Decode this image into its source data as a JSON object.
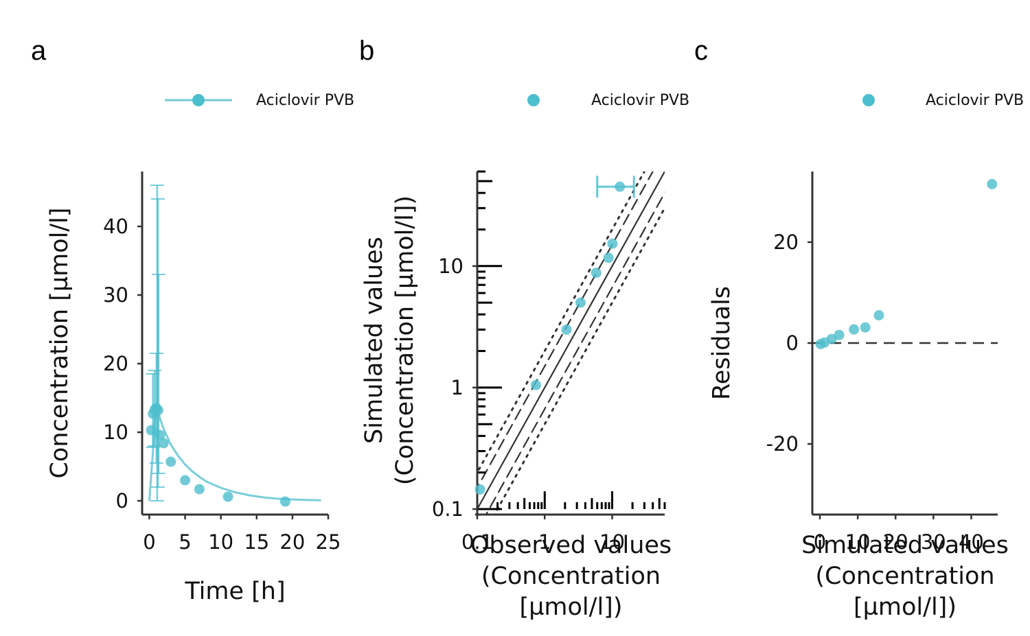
{
  "colors": {
    "series": "#4dbecd",
    "axis": "#333333",
    "ref": "#333333"
  },
  "chart_data": [
    {
      "panel": "a",
      "type": "line",
      "legend": [
        {
          "name": "Aciclovir PVB",
          "marker": "line-point"
        }
      ],
      "xlabel": "Time [h]",
      "ylabel": "Concentration [µmol/l]",
      "xlim": [
        -1,
        25
      ],
      "ylim": [
        -2,
        48
      ],
      "xticks": [
        0,
        5,
        10,
        15,
        20,
        25
      ],
      "yticks": [
        0,
        10,
        20,
        30,
        40
      ],
      "series": [
        {
          "name": "Aciclovir PVB",
          "observed": [
            {
              "x": 0.25,
              "y": 10.3
            },
            {
              "x": 0.5,
              "y": 12.7
            },
            {
              "x": 0.75,
              "y": 13.3
            },
            {
              "x": 1.0,
              "y": 13.5
            },
            {
              "x": 1.25,
              "y": 13.2
            },
            {
              "x": 1.5,
              "y": 9.6
            },
            {
              "x": 2.0,
              "y": 8.4
            },
            {
              "x": 3.0,
              "y": 5.7
            },
            {
              "x": 5.0,
              "y": 3.0
            },
            {
              "x": 7.0,
              "y": 1.7
            },
            {
              "x": 11.0,
              "y": 0.6
            },
            {
              "x": 19.0,
              "y": -0.1
            }
          ],
          "error_bars": [
            {
              "x": 0.5,
              "ylo": 7.8,
              "yhi": 18.5
            },
            {
              "x": 0.75,
              "ylo": 8.0,
              "yhi": 19.0
            },
            {
              "x": 1.0,
              "ylo": 5.5,
              "yhi": 21.5
            },
            {
              "x": 1.1,
              "ylo": 0.0,
              "yhi": 46.0
            },
            {
              "x": 1.2,
              "ylo": 2.0,
              "yhi": 44.0
            },
            {
              "x": 1.3,
              "ylo": 4.0,
              "yhi": 33.0
            }
          ],
          "simulated": [
            {
              "x": 0.0,
              "y": 0.0
            },
            {
              "x": 0.5,
              "y": 7.0
            },
            {
              "x": 0.75,
              "y": 11.5
            },
            {
              "x": 1.0,
              "y": 14.0
            },
            {
              "x": 1.5,
              "y": 12.0
            },
            {
              "x": 2,
              "y": 10.5
            },
            {
              "x": 3,
              "y": 8.2
            },
            {
              "x": 4,
              "y": 6.6
            },
            {
              "x": 5,
              "y": 5.3
            },
            {
              "x": 6,
              "y": 4.3
            },
            {
              "x": 7,
              "y": 3.5
            },
            {
              "x": 8,
              "y": 2.8
            },
            {
              "x": 10,
              "y": 1.9
            },
            {
              "x": 12,
              "y": 1.25
            },
            {
              "x": 14,
              "y": 0.8
            },
            {
              "x": 16,
              "y": 0.5
            },
            {
              "x": 18,
              "y": 0.3
            },
            {
              "x": 20,
              "y": 0.2
            },
            {
              "x": 22,
              "y": 0.12
            },
            {
              "x": 24,
              "y": 0.08
            }
          ]
        }
      ]
    },
    {
      "panel": "b",
      "type": "scatter",
      "legend": [
        {
          "name": "Aciclovir PVB",
          "marker": "point"
        }
      ],
      "xlabel": "Observed values (Concentration [µmol/l])",
      "ylabel": "Simulated values (Concentration [µmol/l])",
      "xscale": "log",
      "yscale": "log",
      "xlim": [
        0.1,
        60
      ],
      "ylim": [
        0.1,
        60
      ],
      "xticks": [
        0.1,
        1,
        10
      ],
      "xtick_labels": [
        "0.1",
        "1",
        "10"
      ],
      "yticks": [
        0.1,
        1,
        10
      ],
      "ytick_labels": [
        "0.1",
        "1",
        "10"
      ],
      "reference_lines": {
        "identity": 1,
        "dashed_fold": 1.5,
        "dotted_fold": 2
      },
      "series": [
        {
          "name": "Aciclovir PVB",
          "points": [
            {
              "x": 0.11,
              "y": 0.145
            },
            {
              "x": 0.74,
              "y": 1.05
            },
            {
              "x": 2.1,
              "y": 3.0
            },
            {
              "x": 3.4,
              "y": 5.0
            },
            {
              "x": 5.8,
              "y": 8.8
            },
            {
              "x": 8.8,
              "y": 11.7
            },
            {
              "x": 10.1,
              "y": 15.3
            },
            {
              "x": 13.0,
              "y": 45.0
            }
          ],
          "x_error_bars": [
            {
              "y": 45.0,
              "xlo": 6.0,
              "xhi": 21.0
            }
          ]
        }
      ]
    },
    {
      "panel": "c",
      "type": "scatter",
      "legend": [
        {
          "name": "Aciclovir PVB",
          "marker": "point"
        }
      ],
      "xlabel": "Simulated values (Concentration [µmol/l])",
      "ylabel": "Residuals",
      "xlim": [
        -2,
        47
      ],
      "ylim": [
        -34,
        34
      ],
      "xticks": [
        0,
        10,
        20,
        30,
        40
      ],
      "yticks": [
        -20,
        0,
        20
      ],
      "zero_line": "dashed",
      "series": [
        {
          "name": "Aciclovir PVB",
          "points": [
            {
              "x": 0.2,
              "y": -0.2
            },
            {
              "x": 1.2,
              "y": 0.1
            },
            {
              "x": 3.1,
              "y": 0.8
            },
            {
              "x": 5.1,
              "y": 1.6
            },
            {
              "x": 9.0,
              "y": 2.7
            },
            {
              "x": 12.0,
              "y": 3.1
            },
            {
              "x": 15.6,
              "y": 5.5
            },
            {
              "x": 45.5,
              "y": 31.5
            }
          ]
        }
      ]
    }
  ]
}
